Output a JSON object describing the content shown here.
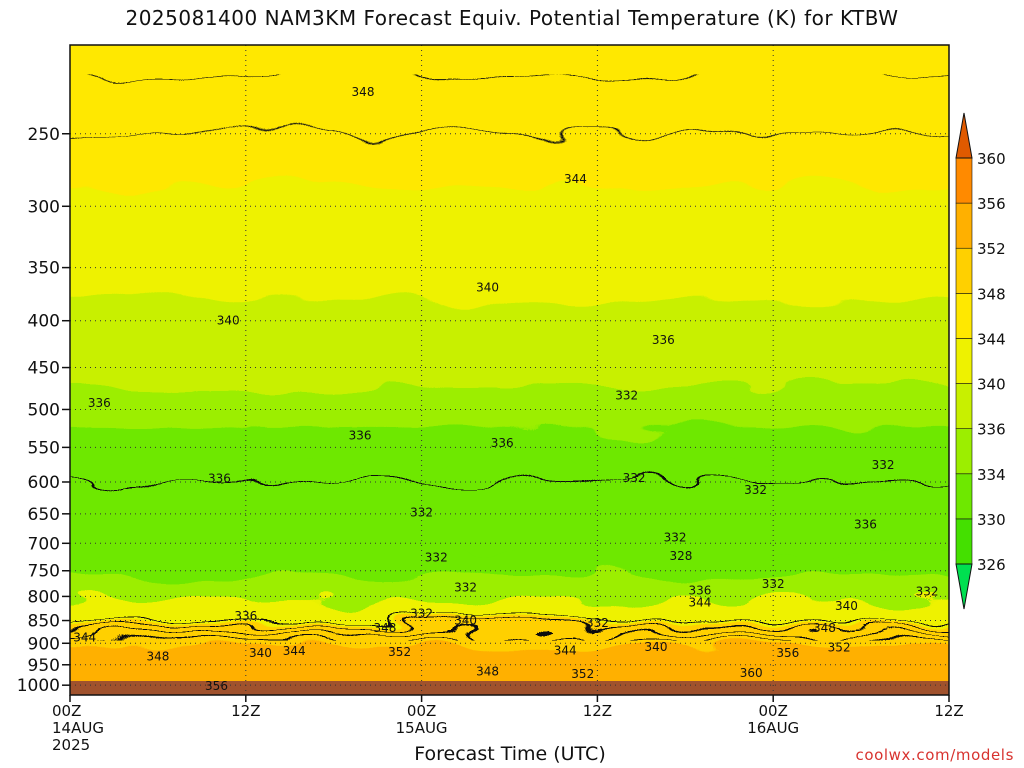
{
  "chart_data": {
    "type": "heatmap",
    "title": "2025081400 NAM3KM Forecast Equiv. Potential Temperature (K) for KTBW",
    "xlabel": "Forecast Time (UTC)",
    "ylabel": "",
    "credit": "coolwx.com/models",
    "x_ticks": [
      {
        "hour": 0,
        "line1": "00Z",
        "line2": "14AUG",
        "line3": "2025"
      },
      {
        "hour": 12,
        "line1": "12Z",
        "line2": "",
        "line3": ""
      },
      {
        "hour": 24,
        "line1": "00Z",
        "line2": "15AUG",
        "line3": ""
      },
      {
        "hour": 36,
        "line1": "12Z",
        "line2": "",
        "line3": ""
      },
      {
        "hour": 48,
        "line1": "00Z",
        "line2": "16AUG",
        "line3": ""
      },
      {
        "hour": 60,
        "line1": "12Z",
        "line2": "",
        "line3": ""
      }
    ],
    "xlim": [
      0,
      60
    ],
    "y_ticks": [
      250,
      300,
      350,
      400,
      450,
      500,
      550,
      600,
      650,
      700,
      750,
      800,
      850,
      900,
      950,
      1000
    ],
    "y_scale": "log-pressure",
    "ylim": [
      200,
      1025
    ],
    "grid": true,
    "colorbar": {
      "labels": [
        326,
        330,
        334,
        336,
        340,
        344,
        348,
        352,
        356,
        360
      ],
      "colors": [
        "#44e000",
        "#6ee800",
        "#9cee00",
        "#c8f000",
        "#eef200",
        "#ffe800",
        "#ffd000",
        "#ffb000",
        "#ff8a00",
        "#ef6a00"
      ],
      "below_color": "#00e050",
      "above_color": "#e05a00"
    },
    "theta_e_profile": [
      {
        "pressure": 200,
        "theta_e": 349
      },
      {
        "pressure": 250,
        "theta_e": 346
      },
      {
        "pressure": 300,
        "theta_e": 343
      },
      {
        "pressure": 350,
        "theta_e": 341
      },
      {
        "pressure": 400,
        "theta_e": 339
      },
      {
        "pressure": 450,
        "theta_e": 337
      },
      {
        "pressure": 500,
        "theta_e": 335
      },
      {
        "pressure": 550,
        "theta_e": 333
      },
      {
        "pressure": 600,
        "theta_e": 332
      },
      {
        "pressure": 650,
        "theta_e": 331
      },
      {
        "pressure": 700,
        "theta_e": 331
      },
      {
        "pressure": 750,
        "theta_e": 331
      },
      {
        "pressure": 800,
        "theta_e": 333
      },
      {
        "pressure": 850,
        "theta_e": 338
      },
      {
        "pressure": 900,
        "theta_e": 345
      },
      {
        "pressure": 950,
        "theta_e": 351
      },
      {
        "pressure": 1000,
        "theta_e": 356
      }
    ],
    "contour_labels": [
      {
        "text": "348",
        "hour": 20.0,
        "pressure": 225
      },
      {
        "text": "344",
        "hour": 34.5,
        "pressure": 280
      },
      {
        "text": "340",
        "hour": 28.5,
        "pressure": 368
      },
      {
        "text": "340",
        "hour": 10.8,
        "pressure": 400
      },
      {
        "text": "336",
        "hour": 40.5,
        "pressure": 420
      },
      {
        "text": "336",
        "hour": 2.0,
        "pressure": 492
      },
      {
        "text": "336",
        "hour": 19.8,
        "pressure": 534
      },
      {
        "text": "336",
        "hour": 29.5,
        "pressure": 544
      },
      {
        "text": "332",
        "hour": 38.0,
        "pressure": 483
      },
      {
        "text": "336",
        "hour": 10.2,
        "pressure": 595
      },
      {
        "text": "332",
        "hour": 38.5,
        "pressure": 594
      },
      {
        "text": "332",
        "hour": 46.8,
        "pressure": 612
      },
      {
        "text": "332",
        "hour": 55.5,
        "pressure": 575
      },
      {
        "text": "332",
        "hour": 24.0,
        "pressure": 648
      },
      {
        "text": "336",
        "hour": 54.3,
        "pressure": 668
      },
      {
        "text": "332",
        "hour": 41.3,
        "pressure": 690
      },
      {
        "text": "328",
        "hour": 41.7,
        "pressure": 723
      },
      {
        "text": "332",
        "hour": 25.0,
        "pressure": 725
      },
      {
        "text": "332",
        "hour": 27.0,
        "pressure": 782
      },
      {
        "text": "336",
        "hour": 43.0,
        "pressure": 788
      },
      {
        "text": "332",
        "hour": 48.0,
        "pressure": 775
      },
      {
        "text": "332",
        "hour": 58.5,
        "pressure": 790
      },
      {
        "text": "344",
        "hour": 43.0,
        "pressure": 812
      },
      {
        "text": "340",
        "hour": 53.0,
        "pressure": 820
      },
      {
        "text": "336",
        "hour": 12.0,
        "pressure": 840
      },
      {
        "text": "332",
        "hour": 24.0,
        "pressure": 835
      },
      {
        "text": "340",
        "hour": 27.0,
        "pressure": 850
      },
      {
        "text": "332",
        "hour": 36.0,
        "pressure": 855
      },
      {
        "text": "348",
        "hour": 21.5,
        "pressure": 866
      },
      {
        "text": "348",
        "hour": 51.5,
        "pressure": 866
      },
      {
        "text": "344",
        "hour": 1.0,
        "pressure": 887
      },
      {
        "text": "352",
        "hour": 22.5,
        "pressure": 920
      },
      {
        "text": "340",
        "hour": 13.0,
        "pressure": 922
      },
      {
        "text": "344",
        "hour": 15.3,
        "pressure": 918
      },
      {
        "text": "344",
        "hour": 33.8,
        "pressure": 916
      },
      {
        "text": "340",
        "hour": 40.0,
        "pressure": 908
      },
      {
        "text": "352",
        "hour": 52.5,
        "pressure": 910
      },
      {
        "text": "356",
        "hour": 49.0,
        "pressure": 922
      },
      {
        "text": "348",
        "hour": 6.0,
        "pressure": 930
      },
      {
        "text": "348",
        "hour": 28.5,
        "pressure": 966
      },
      {
        "text": "352",
        "hour": 35.0,
        "pressure": 972
      },
      {
        "text": "360",
        "hour": 46.5,
        "pressure": 970
      },
      {
        "text": "356",
        "hour": 10.0,
        "pressure": 1002
      }
    ]
  }
}
